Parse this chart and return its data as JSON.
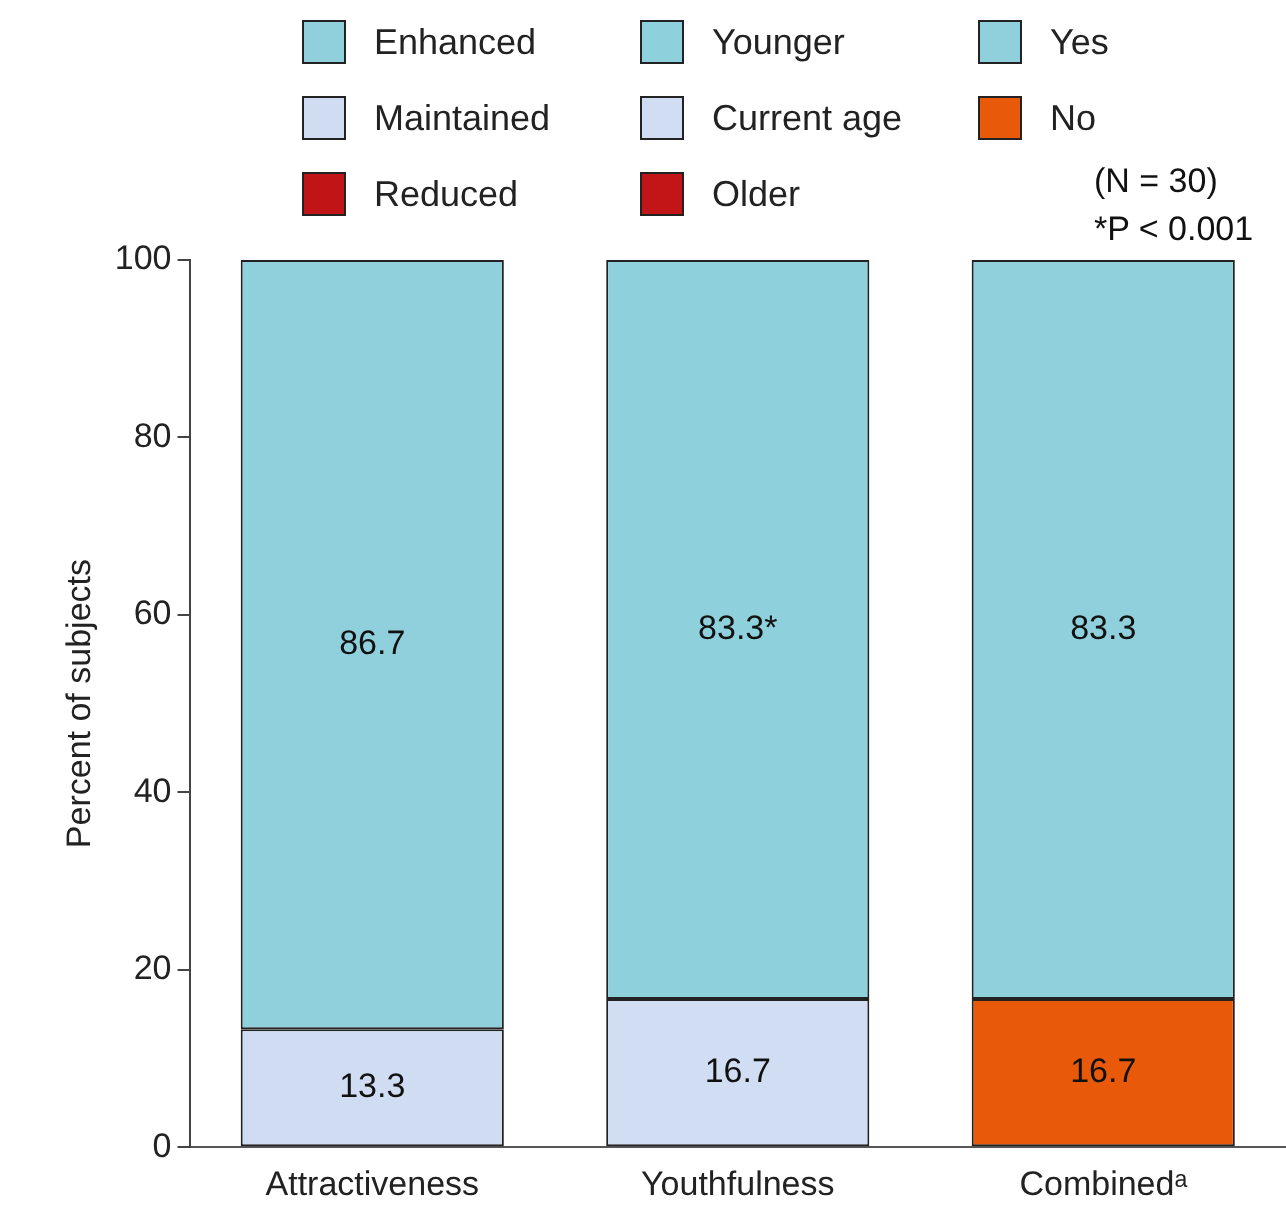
{
  "chart_data": {
    "type": "bar",
    "stacked": true,
    "ylabel": "Percent of subjects",
    "categories": [
      "Attractiveness",
      "Youthfulness",
      "Combinedᵃ"
    ],
    "ylim": [
      0,
      100
    ],
    "yticks": [
      0,
      20,
      40,
      60,
      80,
      100
    ],
    "grid": false,
    "legend": "top",
    "annotations": [
      "(N = 30)",
      "*P < 0.001"
    ],
    "series": [
      {
        "name": "Reduced",
        "color": "#c01416",
        "values": [
          0,
          null,
          null
        ],
        "value_labels": [
          null,
          null,
          null
        ]
      },
      {
        "name": "Maintained",
        "color": "#d0dcf2",
        "values": [
          13.3,
          null,
          null
        ],
        "value_labels": [
          "13.3",
          null,
          null
        ]
      },
      {
        "name": "Enhanced",
        "color": "#8fd0dc",
        "values": [
          86.7,
          null,
          null
        ],
        "value_labels": [
          "86.7",
          null,
          null
        ]
      },
      {
        "name": "Older",
        "color": "#c11517",
        "values": [
          null,
          0,
          null
        ],
        "value_labels": [
          null,
          null,
          null
        ]
      },
      {
        "name": "Current age",
        "color": "#d1ddf2",
        "values": [
          null,
          16.7,
          null
        ],
        "value_labels": [
          null,
          "16.7",
          null
        ]
      },
      {
        "name": "Younger",
        "color": "#8ed1dc",
        "values": [
          null,
          83.3,
          null
        ],
        "value_labels": [
          null,
          "83.3*",
          null
        ]
      },
      {
        "name": "No",
        "color": "#e85a0a",
        "values": [
          null,
          null,
          16.7
        ],
        "value_labels": [
          null,
          null,
          "16.7"
        ]
      },
      {
        "name": "Yes",
        "color": "#90d0dd",
        "values": [
          null,
          null,
          83.3
        ],
        "value_labels": [
          null,
          null,
          "83.3"
        ]
      }
    ]
  }
}
